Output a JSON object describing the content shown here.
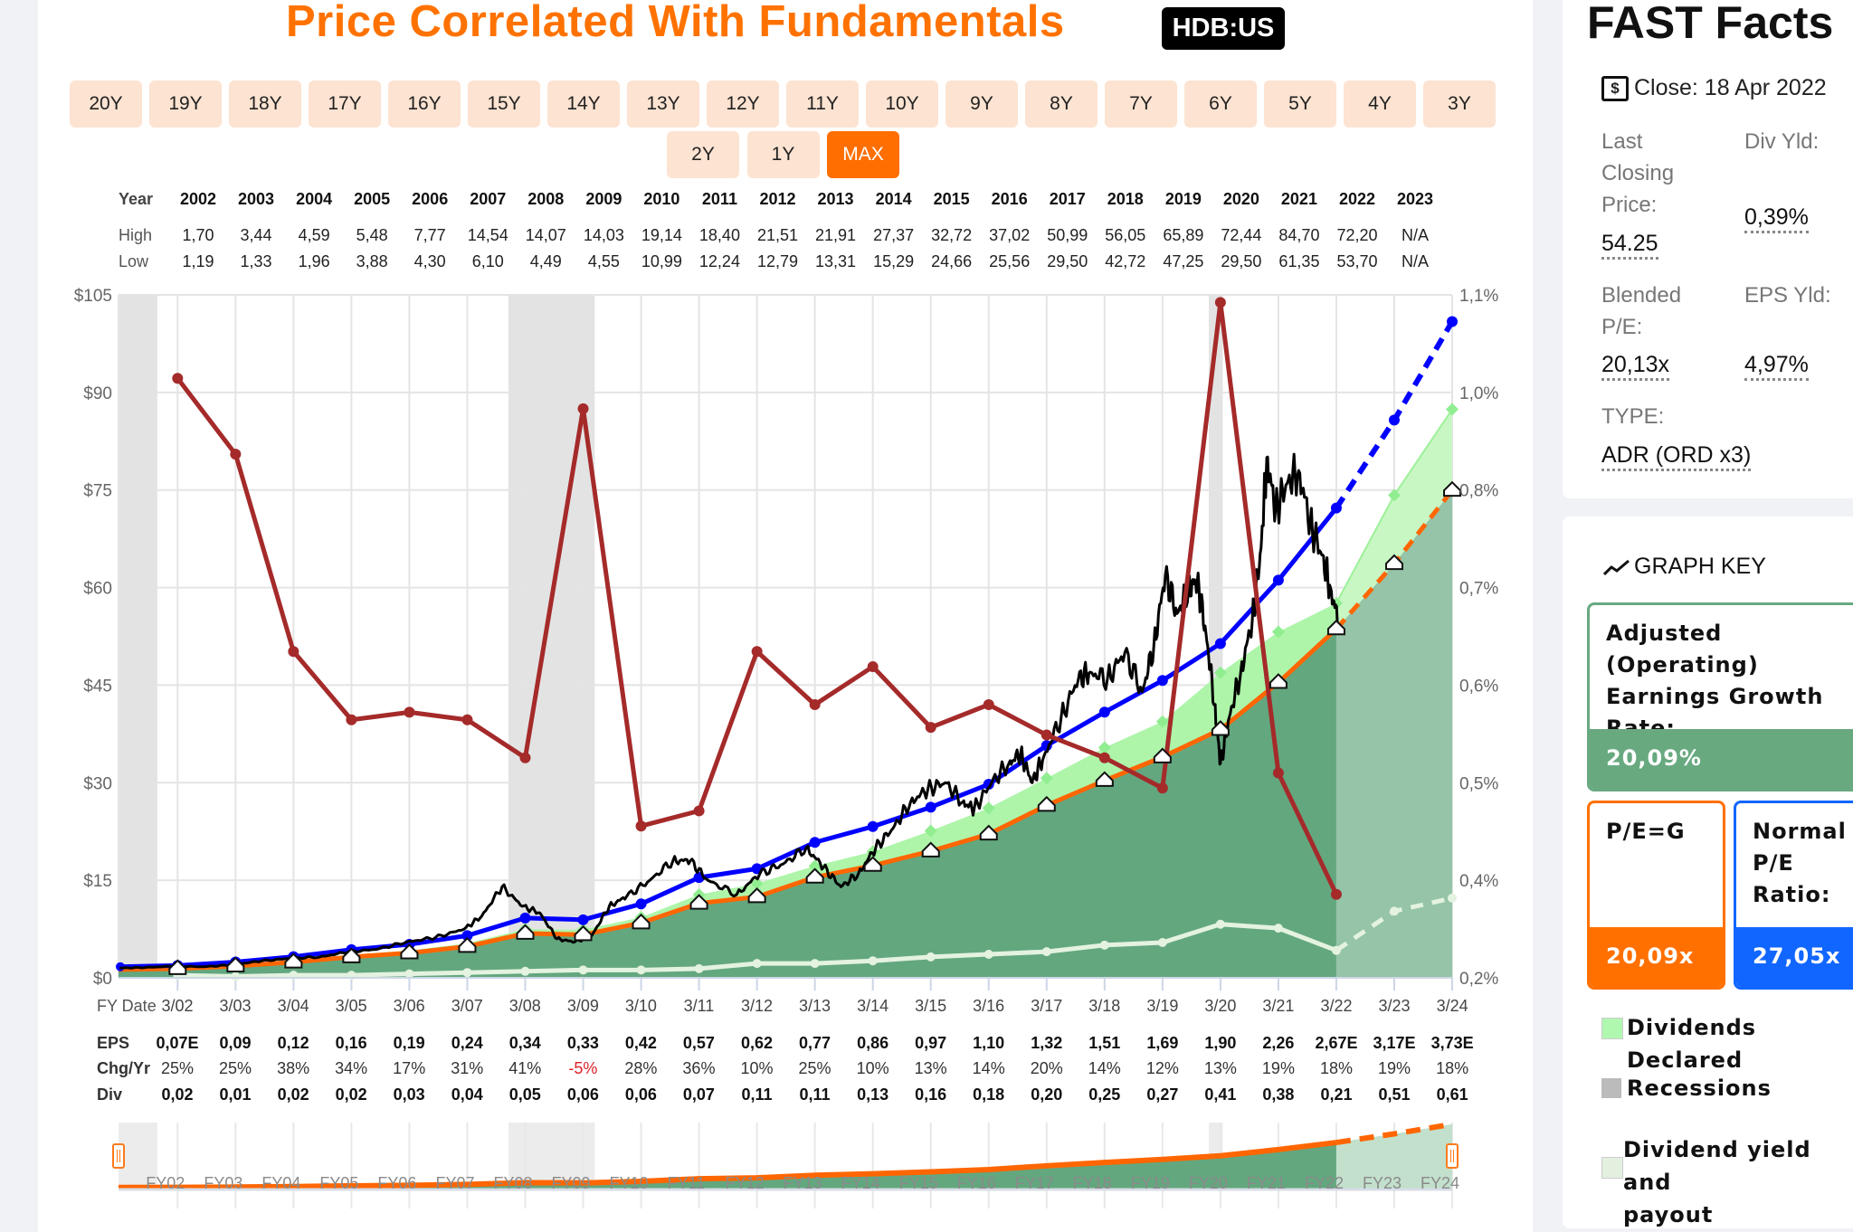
{
  "header": {
    "title": "Price Correlated With Fundamentals",
    "ticker": "HDB:US"
  },
  "ranges": [
    "20Y",
    "19Y",
    "18Y",
    "17Y",
    "16Y",
    "15Y",
    "14Y",
    "13Y",
    "12Y",
    "11Y",
    "10Y",
    "9Y",
    "8Y",
    "7Y",
    "6Y",
    "5Y",
    "4Y",
    "3Y",
    "2Y",
    "1Y",
    "MAX"
  ],
  "active_range": "MAX",
  "year_table": {
    "year_label": "Year",
    "high_label": "High",
    "low_label": "Low",
    "years": [
      "2002",
      "2003",
      "2004",
      "2005",
      "2006",
      "2007",
      "2008",
      "2009",
      "2010",
      "2011",
      "2012",
      "2013",
      "2014",
      "2015",
      "2016",
      "2017",
      "2018",
      "2019",
      "2020",
      "2021",
      "2022",
      "2023"
    ],
    "high": [
      "1,70",
      "3,44",
      "4,59",
      "5,48",
      "7,77",
      "14,54",
      "14,07",
      "14,03",
      "19,14",
      "18,40",
      "21,51",
      "21,91",
      "27,37",
      "32,72",
      "37,02",
      "50,99",
      "56,05",
      "65,89",
      "72,44",
      "84,70",
      "72,20",
      "N/A"
    ],
    "low": [
      "1,19",
      "1,33",
      "1,96",
      "3,88",
      "4,30",
      "6,10",
      "4,49",
      "4,55",
      "10,99",
      "12,24",
      "12,79",
      "13,31",
      "15,29",
      "24,66",
      "25,56",
      "29,50",
      "42,72",
      "47,25",
      "29,50",
      "61,35",
      "53,70",
      "N/A"
    ]
  },
  "bottom_table": {
    "fy_label": "FY Date",
    "eps_label": "EPS",
    "chg_label": "Chg/Yr",
    "div_label": "Div",
    "fy_dates": [
      "3/02",
      "3/03",
      "3/04",
      "3/05",
      "3/06",
      "3/07",
      "3/08",
      "3/09",
      "3/10",
      "3/11",
      "3/12",
      "3/13",
      "3/14",
      "3/15",
      "3/16",
      "3/17",
      "3/18",
      "3/19",
      "3/20",
      "3/21",
      "3/22",
      "3/23",
      "3/24"
    ],
    "eps": [
      "0,07E",
      "0,09",
      "0,12",
      "0,16",
      "0,19",
      "0,24",
      "0,34",
      "0,33",
      "0,42",
      "0,57",
      "0,62",
      "0,77",
      "0,86",
      "0,97",
      "1,10",
      "1,32",
      "1,51",
      "1,69",
      "1,90",
      "2,26",
      "2,67E",
      "3,17E",
      "3,73E"
    ],
    "chg": [
      "25%",
      "25%",
      "38%",
      "34%",
      "17%",
      "31%",
      "41%",
      "-5%",
      "28%",
      "36%",
      "10%",
      "25%",
      "10%",
      "13%",
      "14%",
      "20%",
      "14%",
      "12%",
      "13%",
      "19%",
      "18%",
      "19%",
      "18%"
    ],
    "div": [
      "0,02",
      "0,01",
      "0,02",
      "0,02",
      "0,03",
      "0,04",
      "0,05",
      "0,06",
      "0,06",
      "0,07",
      "0,11",
      "0,11",
      "0,13",
      "0,16",
      "0,18",
      "0,20",
      "0,25",
      "0,27",
      "0,41",
      "0,38",
      "0,21",
      "0,51",
      "0,61"
    ],
    "negative_color": "#e0202a"
  },
  "chart_data": {
    "type": "line",
    "x_range": [
      2001.23,
      2024.25
    ],
    "first_fy": 2002.25,
    "actual_until_fy": "3/22",
    "y_left": {
      "min": 0,
      "max": 105,
      "ticks": [
        "$0",
        "$15",
        "$30",
        "$45",
        "$60",
        "$75",
        "$90",
        "$105"
      ]
    },
    "y_right": {
      "min": 0.2,
      "max": 1.1,
      "ticks": [
        "0,2%",
        "0,4%",
        "0,5%",
        "0,6%",
        "0,7%",
        "0,8%",
        "1,0%",
        "1,1%"
      ]
    },
    "grid": true,
    "pe_g_multiple": 20.09,
    "normal_pe_multiple": 27.05,
    "dividends_declared_line": [
      1.6,
      2.0,
      2.7,
      3.5,
      4.2,
      5.3,
      7.5,
      7.4,
      9.3,
      12.8,
      14.5,
      17.2,
      19.4,
      22.6,
      26.1,
      30.7,
      35.4,
      39.4,
      46.9,
      53.2,
      57.6,
      74.2,
      87.4
    ],
    "dividend_yield_pct": [
      0.99,
      0.89,
      0.63,
      0.54,
      0.55,
      0.54,
      0.49,
      0.95,
      0.4,
      0.42,
      0.63,
      0.56,
      0.61,
      0.53,
      0.56,
      0.52,
      0.49,
      0.45,
      1.09,
      0.47,
      0.31
    ],
    "price": [
      [
        2001.25,
        1.5
      ],
      [
        2001.7,
        1.6
      ],
      [
        2002.2,
        1.8
      ],
      [
        2002.7,
        1.7
      ],
      [
        2003.2,
        2.0
      ],
      [
        2003.7,
        2.6
      ],
      [
        2004.2,
        3.0
      ],
      [
        2004.7,
        3.2
      ],
      [
        2005.2,
        4.0
      ],
      [
        2005.7,
        4.4
      ],
      [
        2006.2,
        5.5
      ],
      [
        2006.7,
        6.2
      ],
      [
        2007.2,
        7.5
      ],
      [
        2007.5,
        9.5
      ],
      [
        2007.85,
        14
      ],
      [
        2008.2,
        11
      ],
      [
        2008.5,
        10
      ],
      [
        2008.8,
        6
      ],
      [
        2009.1,
        5.5
      ],
      [
        2009.4,
        6.5
      ],
      [
        2009.7,
        11
      ],
      [
        2010.0,
        12.5
      ],
      [
        2010.4,
        15
      ],
      [
        2010.8,
        18
      ],
      [
        2011.1,
        18
      ],
      [
        2011.4,
        15
      ],
      [
        2011.9,
        12.8
      ],
      [
        2012.3,
        16
      ],
      [
        2012.7,
        17.5
      ],
      [
        2013.1,
        20
      ],
      [
        2013.4,
        17
      ],
      [
        2013.7,
        14
      ],
      [
        2014.0,
        16
      ],
      [
        2014.3,
        20
      ],
      [
        2014.6,
        23
      ],
      [
        2014.9,
        27
      ],
      [
        2015.2,
        29
      ],
      [
        2015.5,
        30
      ],
      [
        2015.8,
        27
      ],
      [
        2016.0,
        26
      ],
      [
        2016.3,
        30
      ],
      [
        2016.6,
        33
      ],
      [
        2016.8,
        34.5
      ],
      [
        2017.0,
        30
      ],
      [
        2017.2,
        34
      ],
      [
        2017.5,
        40
      ],
      [
        2017.8,
        46
      ],
      [
        2018.0,
        47
      ],
      [
        2018.3,
        46
      ],
      [
        2018.6,
        50
      ],
      [
        2018.9,
        44
      ],
      [
        2019.1,
        51
      ],
      [
        2019.3,
        62
      ],
      [
        2019.5,
        56
      ],
      [
        2019.7,
        60
      ],
      [
        2019.85,
        61
      ],
      [
        2020.0,
        53
      ],
      [
        2020.15,
        42
      ],
      [
        2020.25,
        33
      ],
      [
        2020.4,
        40
      ],
      [
        2020.6,
        47
      ],
      [
        2020.8,
        55
      ],
      [
        2020.95,
        66
      ],
      [
        2021.05,
        80
      ],
      [
        2021.2,
        72
      ],
      [
        2021.4,
        76
      ],
      [
        2021.6,
        78
      ],
      [
        2021.8,
        70
      ],
      [
        2022.0,
        65
      ],
      [
        2022.15,
        60
      ],
      [
        2022.3,
        54.25
      ]
    ],
    "recessions": [
      [
        2001.23,
        2001.9
      ],
      [
        2007.96,
        2009.45
      ],
      [
        2020.05,
        2020.29
      ]
    ],
    "nav_labels": [
      "FY02",
      "FY03",
      "FY04",
      "FY05",
      "FY06",
      "FY07",
      "FY08",
      "FY09",
      "FY10",
      "FY11",
      "FY12",
      "FY13",
      "FY14",
      "FY15",
      "FY16",
      "FY17",
      "FY18",
      "FY19",
      "FY20",
      "FY21",
      "FY22",
      "FY23",
      "FY24"
    ],
    "colors": {
      "price": "#000000",
      "normal_pe": "#0000ff",
      "pe_g": "#ff6600",
      "earnings_area": "#63a77f",
      "earnings_forecast_area": "#95c4a8",
      "dividends_declared": "#aef5aa",
      "div_yield": "#a52a2a",
      "dividend": "#e4f2e0",
      "recession": "#e3e3e3"
    }
  },
  "fast_facts": {
    "title": "FAST Facts",
    "close_icon": "dollar-icon",
    "close_text": "Close: 18 Apr 2022",
    "last_close_label": [
      "Last",
      "Closing",
      "Price:"
    ],
    "last_close_value": "54.25",
    "div_yld_label": "Div Yld:",
    "div_yld_value": "0,39%",
    "blended_pe_label": [
      "Blended",
      "P/E:"
    ],
    "blended_pe_value": "20,13x",
    "eps_yld_label": "EPS Yld:",
    "eps_yld_value": "4,97%",
    "type_label": "TYPE:",
    "type_value": "ADR (ORD x3)"
  },
  "graph_key": {
    "title": "GRAPH KEY",
    "growth_label": [
      "Adjusted (Operating)",
      "Earnings Growth",
      "Rate:"
    ],
    "growth_value": "20,09%",
    "peg_label": "P/E=G",
    "peg_value": "20,09x",
    "normal_pe_label": [
      "Normal",
      "P/E",
      "Ratio:"
    ],
    "normal_pe_value": "27,05x",
    "legend": [
      "Dividends Declared",
      "Recessions"
    ],
    "legend_multi": [
      "Dividend yield and",
      "payout"
    ],
    "colors": {
      "growth": "#68a980",
      "peg": "#ff7000",
      "normal_pe": "#1166ff",
      "dividends": "#b0f7b0",
      "recessions": "#bbbbbb",
      "yield": "#e3f0e0"
    }
  }
}
